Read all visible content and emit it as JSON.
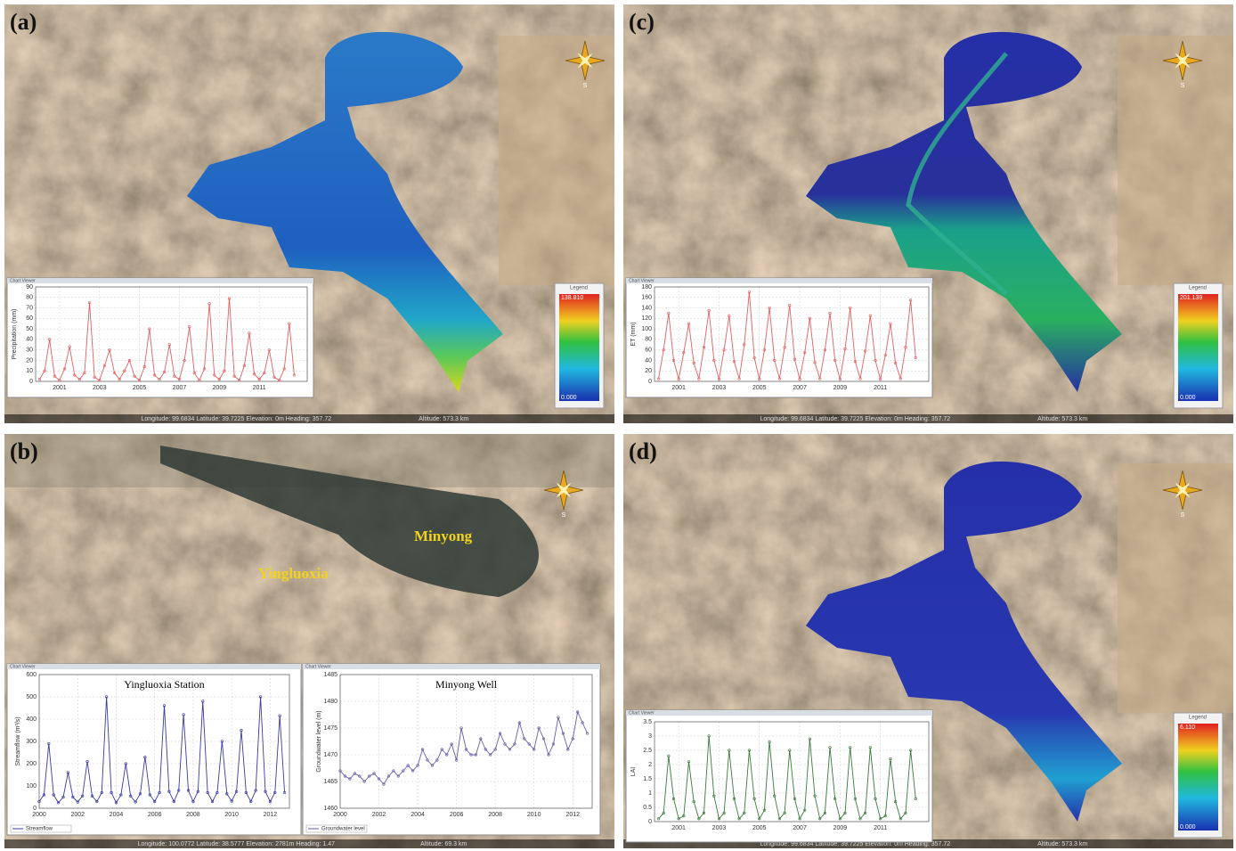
{
  "panels": [
    {
      "label": "(a)",
      "compass": "S",
      "legend": {
        "title": "Legend",
        "max": "138.810",
        "min": "0.000"
      },
      "status": {
        "position": "Longitude: 99.6834   Latitude: 39.7225   Elevation: 0m   Heading: 357.72",
        "altitude": "Altitude: 573.3 km"
      }
    },
    {
      "label": "(b)",
      "compass": "S",
      "places": [
        "Minyong",
        "Yingluoxia"
      ],
      "status": {
        "position": "Longitude: 100.0772   Latitude: 38.5777   Elevation: 2781m   Heading: 1.47",
        "altitude": "Altitude: 69.3 km"
      }
    },
    {
      "label": "(c)",
      "compass": "S",
      "legend": {
        "title": "Legend",
        "max": "201.139",
        "min": "0.000"
      },
      "status": {
        "position": "Longitude: 99.6834   Latitude: 39.7225   Elevation: 0m   Heading: 357.72",
        "altitude": "Altitude: 573.3 km"
      }
    },
    {
      "label": "(d)",
      "compass": "S",
      "legend": {
        "title": "Legend",
        "max": "6.110",
        "min": "0.000"
      },
      "status": {
        "position": "Longitude: 99.6834   Latitude: 39.7225   Elevation: 0m   Heading: 357.72",
        "altitude": "Altitude: 573.3 km"
      }
    }
  ],
  "chart_data": [
    {
      "type": "line",
      "window_title": "Chart Viewer",
      "y_label": "Precipitation (mm)",
      "color": "#e06060",
      "x": [
        2000,
        2000.25,
        2000.5,
        2000.75,
        2001,
        2001.25,
        2001.5,
        2001.75,
        2002,
        2002.25,
        2002.5,
        2002.75,
        2003,
        2003.25,
        2003.5,
        2003.75,
        2004,
        2004.25,
        2004.5,
        2004.75,
        2005,
        2005.25,
        2005.5,
        2005.75,
        2006,
        2006.25,
        2006.5,
        2006.75,
        2007,
        2007.25,
        2007.5,
        2007.75,
        2008,
        2008.25,
        2008.5,
        2008.75,
        2009,
        2009.25,
        2009.5,
        2009.75,
        2010,
        2010.25,
        2010.5,
        2010.75,
        2011,
        2011.25,
        2011.5,
        2011.75,
        2012,
        2012.25,
        2012.5,
        2012.75
      ],
      "values": [
        2,
        10,
        40,
        5,
        1,
        12,
        33,
        6,
        2,
        8,
        75,
        4,
        1,
        15,
        30,
        8,
        2,
        10,
        20,
        5,
        1,
        14,
        50,
        6,
        2,
        9,
        35,
        5,
        2,
        20,
        52,
        8,
        1,
        12,
        74,
        6,
        2,
        10,
        79,
        5,
        1,
        15,
        46,
        7,
        2,
        8,
        30,
        4,
        1,
        12,
        55,
        6
      ],
      "xlim": [
        1999.8,
        2013.4
      ],
      "xticks": [
        2001,
        2003,
        2005,
        2007,
        2009,
        2011
      ],
      "ylim": [
        0,
        90
      ],
      "yticks": [
        0,
        10,
        20,
        30,
        40,
        50,
        60,
        70,
        80,
        90
      ],
      "grid": true
    },
    {
      "type": "line",
      "window_title": "Chart Viewer",
      "y_label": "ET (mm)",
      "color": "#e06060",
      "x": [
        2000,
        2000.25,
        2000.5,
        2000.75,
        2001,
        2001.25,
        2001.5,
        2001.75,
        2002,
        2002.25,
        2002.5,
        2002.75,
        2003,
        2003.25,
        2003.5,
        2003.75,
        2004,
        2004.25,
        2004.5,
        2004.75,
        2005,
        2005.25,
        2005.5,
        2005.75,
        2006,
        2006.25,
        2006.5,
        2006.75,
        2007,
        2007.25,
        2007.5,
        2007.75,
        2008,
        2008.25,
        2008.5,
        2008.75,
        2009,
        2009.25,
        2009.5,
        2009.75,
        2010,
        2010.25,
        2010.5,
        2010.75,
        2011,
        2011.25,
        2011.5,
        2011.75,
        2012,
        2012.25,
        2012.5,
        2012.75
      ],
      "values": [
        5,
        60,
        130,
        40,
        4,
        55,
        110,
        35,
        5,
        65,
        135,
        40,
        4,
        60,
        125,
        38,
        5,
        70,
        170,
        45,
        4,
        60,
        140,
        40,
        5,
        65,
        145,
        42,
        4,
        55,
        120,
        36,
        5,
        60,
        130,
        40,
        4,
        62,
        140,
        38,
        5,
        58,
        125,
        40,
        4,
        50,
        110,
        35,
        5,
        65,
        155,
        45
      ],
      "xlim": [
        1999.8,
        2013.4
      ],
      "xticks": [
        2001,
        2003,
        2005,
        2007,
        2009,
        2011
      ],
      "ylim": [
        0,
        180
      ],
      "yticks": [
        0,
        20,
        40,
        60,
        80,
        100,
        120,
        140,
        160,
        180
      ],
      "grid": true
    },
    {
      "type": "line",
      "window_title": "Chart Viewer",
      "y_label": "LAI",
      "color": "#3a7a3a",
      "x": [
        2000,
        2000.25,
        2000.5,
        2000.75,
        2001,
        2001.25,
        2001.5,
        2001.75,
        2002,
        2002.25,
        2002.5,
        2002.75,
        2003,
        2003.25,
        2003.5,
        2003.75,
        2004,
        2004.25,
        2004.5,
        2004.75,
        2005,
        2005.25,
        2005.5,
        2005.75,
        2006,
        2006.25,
        2006.5,
        2006.75,
        2007,
        2007.25,
        2007.5,
        2007.75,
        2008,
        2008.25,
        2008.5,
        2008.75,
        2009,
        2009.25,
        2009.5,
        2009.75,
        2010,
        2010.25,
        2010.5,
        2010.75,
        2011,
        2011.25,
        2011.5,
        2011.75,
        2012,
        2012.25,
        2012.5,
        2012.75
      ],
      "values": [
        0.1,
        0.3,
        2.3,
        0.8,
        0.1,
        0.2,
        2.1,
        0.7,
        0.1,
        0.3,
        3.0,
        0.9,
        0.1,
        0.3,
        2.5,
        0.8,
        0.1,
        0.3,
        2.5,
        0.8,
        0.1,
        0.4,
        2.8,
        0.9,
        0.1,
        0.3,
        2.5,
        0.8,
        0.1,
        0.4,
        2.9,
        0.9,
        0.1,
        0.3,
        2.6,
        0.8,
        0.1,
        0.3,
        2.6,
        0.8,
        0.1,
        0.3,
        2.6,
        0.8,
        0.1,
        0.2,
        2.2,
        0.7,
        0.1,
        0.3,
        2.5,
        0.8
      ],
      "xlim": [
        1999.8,
        2013.4
      ],
      "xticks": [
        2001,
        2003,
        2005,
        2007,
        2009,
        2011
      ],
      "ylim": [
        0,
        3.5
      ],
      "yticks": [
        0,
        0.5,
        1,
        1.5,
        2,
        2.5,
        3,
        3.5
      ],
      "grid": true
    },
    {
      "type": "line",
      "window_title": "Chart Viewer",
      "title": "Yingluoxia Station",
      "y_label": "Streamflow (m³/s)",
      "x": [
        2000,
        2000.25,
        2000.5,
        2000.75,
        2001,
        2001.25,
        2001.5,
        2001.75,
        2002,
        2002.25,
        2002.5,
        2002.75,
        2003,
        2003.25,
        2003.5,
        2003.75,
        2004,
        2004.25,
        2004.5,
        2004.75,
        2005,
        2005.25,
        2005.5,
        2005.75,
        2006,
        2006.25,
        2006.5,
        2006.75,
        2007,
        2007.25,
        2007.5,
        2007.75,
        2008,
        2008.25,
        2008.5,
        2008.75,
        2009,
        2009.25,
        2009.5,
        2009.75,
        2010,
        2010.25,
        2010.5,
        2010.75,
        2011,
        2011.25,
        2011.5,
        2011.75,
        2012,
        2012.25,
        2012.5,
        2012.75
      ],
      "series": [
        {
          "name": "Streamflow",
          "color": "#3a3aa0",
          "values": [
            30,
            60,
            290,
            60,
            25,
            50,
            160,
            50,
            28,
            55,
            210,
            55,
            30,
            70,
            500,
            70,
            25,
            60,
            200,
            55,
            28,
            65,
            230,
            60,
            30,
            70,
            460,
            75,
            30,
            80,
            420,
            80,
            30,
            75,
            480,
            70,
            30,
            70,
            300,
            65,
            32,
            75,
            350,
            70,
            30,
            80,
            500,
            75,
            30,
            70,
            415,
            70
          ]
        }
      ],
      "xlim": [
        2000,
        2013
      ],
      "xticks": [
        2000,
        2002,
        2004,
        2006,
        2008,
        2010,
        2012
      ],
      "ylim": [
        0,
        600
      ],
      "yticks": [
        0,
        100,
        200,
        300,
        400,
        500,
        600
      ],
      "grid": true
    },
    {
      "type": "line",
      "window_title": "Chart Viewer",
      "title": "Minyong Well",
      "y_label": "Groundwater level (m)",
      "x": [
        2000,
        2000.25,
        2000.5,
        2000.75,
        2001,
        2001.25,
        2001.5,
        2001.75,
        2002,
        2002.25,
        2002.5,
        2002.75,
        2003,
        2003.25,
        2003.5,
        2003.75,
        2004,
        2004.25,
        2004.5,
        2004.75,
        2005,
        2005.25,
        2005.5,
        2005.75,
        2006,
        2006.25,
        2006.5,
        2006.75,
        2007,
        2007.25,
        2007.5,
        2007.75,
        2008,
        2008.25,
        2008.5,
        2008.75,
        2009,
        2009.25,
        2009.5,
        2009.75,
        2010,
        2010.25,
        2010.5,
        2010.75,
        2011,
        2011.25,
        2011.5,
        2011.75,
        2012,
        2012.25,
        2012.5,
        2012.75
      ],
      "series": [
        {
          "name": "Groundwater level",
          "color": "#6a5aa8",
          "values": [
            1467,
            1466,
            1465.5,
            1466.5,
            1466,
            1465,
            1466,
            1466.5,
            1465.5,
            1464.5,
            1466,
            1467,
            1466,
            1467,
            1468,
            1467,
            1468,
            1471,
            1469,
            1468,
            1469,
            1471,
            1470,
            1472,
            1469,
            1475,
            1471,
            1470,
            1470,
            1473,
            1471,
            1470,
            1471,
            1474,
            1472,
            1471,
            1472,
            1476,
            1473,
            1472,
            1471,
            1475,
            1473,
            1470,
            1472,
            1477,
            1474,
            1471,
            1473,
            1478,
            1476,
            1474
          ]
        }
      ],
      "xlim": [
        2000,
        2013
      ],
      "xticks": [
        2000,
        2002,
        2004,
        2006,
        2008,
        2010,
        2012
      ],
      "ylim": [
        1460,
        1485
      ],
      "yticks": [
        1460,
        1465,
        1470,
        1475,
        1480,
        1485
      ],
      "grid": true
    }
  ]
}
